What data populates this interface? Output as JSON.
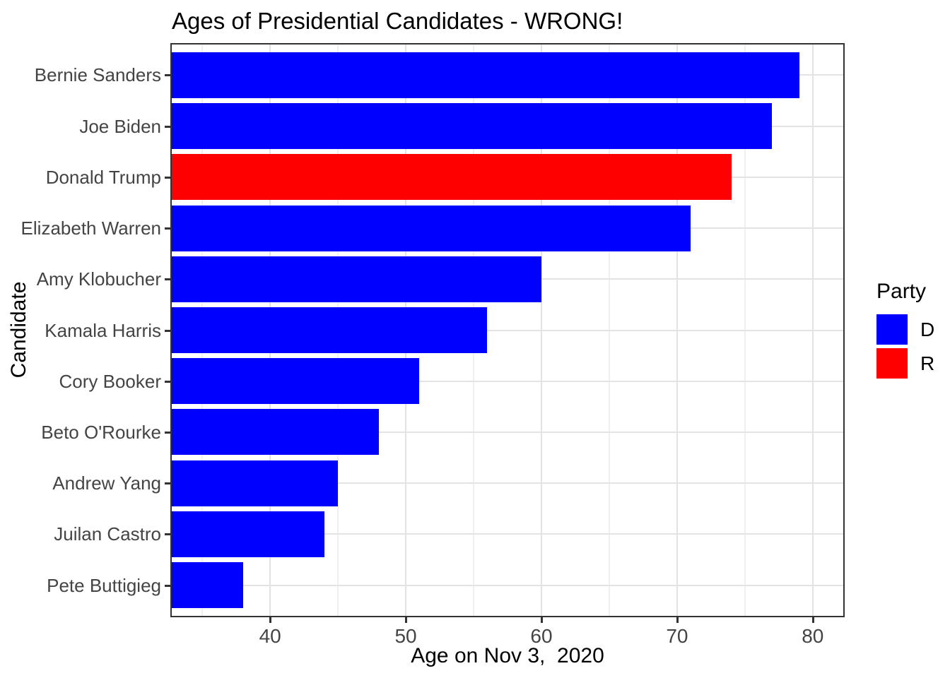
{
  "figure": {
    "title": "Ages of Presidential Candidates - WRONG!",
    "x_axis_title": "Age on Nov 3,  2020",
    "y_axis_title": "Candidate",
    "legend_title": "Party"
  },
  "chart_data": {
    "type": "bar",
    "orientation": "horizontal",
    "title": "Ages of Presidential Candidates - WRONG!",
    "xlabel": "Age on Nov 3,  2020",
    "ylabel": "Candidate",
    "categories": [
      "Bernie Sanders",
      "Joe Biden",
      "Donald Trump",
      "Elizabeth Warren",
      "Amy Klobucher",
      "Kamala Harris",
      "Cory Booker",
      "Beto O'Rourke",
      "Andrew Yang",
      "Juilan Castro",
      "Pete Buttigieg"
    ],
    "values": [
      79,
      77,
      74,
      71,
      60,
      56,
      51,
      48,
      45,
      44,
      38
    ],
    "parties": [
      "D",
      "D",
      "R",
      "D",
      "D",
      "D",
      "D",
      "D",
      "D",
      "D",
      "D"
    ],
    "party_colors": {
      "D": "#0000FF",
      "R": "#FF0000"
    },
    "xlim": [
      32.75,
      82.25
    ],
    "x_major_ticks": [
      40,
      50,
      60,
      70,
      80
    ],
    "x_minor_gridlines": [
      35,
      45,
      55,
      65,
      75
    ],
    "grid": "vertical major+minor, horizontal major at category centers",
    "legend_position": "right",
    "legend": {
      "title": "Party",
      "entries": [
        {
          "label": "D",
          "color": "#0000FF"
        },
        {
          "label": "R",
          "color": "#FF0000"
        }
      ]
    }
  },
  "colors": {
    "background": "#FFFFFF",
    "bar_democrat": "#0000FF",
    "bar_republican": "#FF0000",
    "panel_border": "#333333",
    "tick_mark": "#333333",
    "gridline_major": "#E3E3E3",
    "gridline_minor": "#F0F0F0",
    "axis_text": "#444444",
    "title_text": "#000000"
  }
}
